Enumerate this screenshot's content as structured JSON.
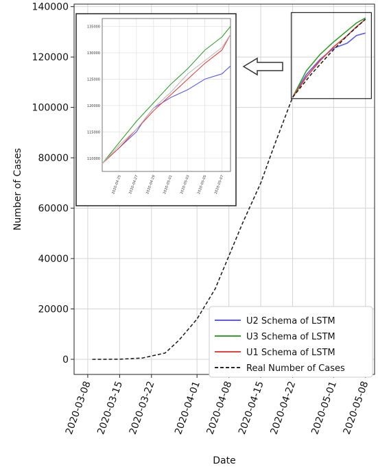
{
  "chart_data": {
    "type": "line",
    "xlabel": "Date",
    "ylabel": "Number of Cases",
    "ylim": [
      -6000,
      141000
    ],
    "xlim": [
      "2020-03-05",
      "2020-05-10"
    ],
    "grid": true,
    "legend_position": "bottom-right",
    "x_ticks": [
      "2020-03-08",
      "2020-03-15",
      "2020-03-22",
      "2020-04-01",
      "2020-04-08",
      "2020-04-15",
      "2020-04-22",
      "2020-05-01",
      "2020-05-08"
    ],
    "y_ticks": [
      0,
      20000,
      40000,
      60000,
      80000,
      100000,
      120000,
      140000
    ],
    "series": [
      {
        "name": "U2 Schema of LSTM",
        "color": "#5b5bf0",
        "style": "solid",
        "x": [
          "2020-04-22",
          "2020-04-25",
          "2020-04-28",
          "2020-05-01",
          "2020-05-04",
          "2020-05-06",
          "2020-05-08"
        ],
        "y": [
          104000,
          113000,
          119000,
          123500,
          125500,
          128500,
          129500
        ]
      },
      {
        "name": "U3 Schema of LSTM",
        "color": "#33a02c",
        "style": "solid",
        "x": [
          "2020-04-22",
          "2020-04-25",
          "2020-04-28",
          "2020-05-01",
          "2020-05-04",
          "2020-05-06",
          "2020-05-08"
        ],
        "y": [
          104000,
          114500,
          121000,
          126000,
          130500,
          133500,
          135500
        ]
      },
      {
        "name": "U1 Schema of LSTM",
        "color": "#e8403a",
        "style": "solid",
        "x": [
          "2020-04-22",
          "2020-04-25",
          "2020-04-28",
          "2020-05-01",
          "2020-05-04",
          "2020-05-06",
          "2020-05-08"
        ],
        "y": [
          104000,
          112000,
          118500,
          124000,
          128500,
          132000,
          135000
        ]
      },
      {
        "name": "Real Number of Cases",
        "color": "#222222",
        "style": "dashed",
        "x": [
          "2020-03-09",
          "2020-03-15",
          "2020-03-20",
          "2020-03-25",
          "2020-03-28",
          "2020-04-01",
          "2020-04-05",
          "2020-04-08",
          "2020-04-11",
          "2020-04-15",
          "2020-04-18",
          "2020-04-22",
          "2020-04-26",
          "2020-04-30",
          "2020-05-04",
          "2020-05-08"
        ],
        "y": [
          0,
          50,
          500,
          2500,
          7500,
          16000,
          28000,
          41000,
          54000,
          70000,
          85000,
          104000,
          113000,
          121000,
          128500,
          135000
        ]
      }
    ],
    "inset": {
      "ylim": [
        107500,
        136500
      ],
      "xlim": [
        "2020-04-23",
        "2020-05-08"
      ],
      "y_ticks": [
        110000,
        115000,
        120000,
        125000,
        130000,
        135000
      ],
      "x_ticks": [
        "2020-04-25",
        "2020-04-27",
        "2020-04-29",
        "2020-05-01",
        "2020-05-03",
        "2020-05-05",
        "2020-05-07"
      ],
      "series": [
        {
          "color": "#5b5bf0",
          "x": [
            "2020-04-23",
            "2020-04-25",
            "2020-04-27",
            "2020-04-28",
            "2020-04-29",
            "2020-05-01",
            "2020-05-03",
            "2020-05-05",
            "2020-05-07",
            "2020-05-08"
          ],
          "y": [
            109000,
            112000,
            115000,
            117500,
            119500,
            121500,
            123000,
            125000,
            126000,
            127500
          ]
        },
        {
          "color": "#33a02c",
          "x": [
            "2020-04-23",
            "2020-04-25",
            "2020-04-27",
            "2020-04-29",
            "2020-05-01",
            "2020-05-03",
            "2020-05-05",
            "2020-05-07",
            "2020-05-08"
          ],
          "y": [
            109000,
            113000,
            117000,
            120500,
            124000,
            127000,
            130500,
            133000,
            135000
          ]
        },
        {
          "color": "#e8403a",
          "x": [
            "2020-04-23",
            "2020-04-25",
            "2020-04-27",
            "2020-04-29",
            "2020-05-01",
            "2020-05-03",
            "2020-05-05",
            "2020-05-07",
            "2020-05-08"
          ],
          "y": [
            109000,
            112000,
            115500,
            119000,
            122000,
            125000,
            128000,
            130500,
            133500
          ]
        },
        {
          "color": "#bbbbbb",
          "x": [
            "2020-04-23",
            "2020-04-25",
            "2020-04-27",
            "2020-04-29",
            "2020-05-01",
            "2020-05-03",
            "2020-05-05",
            "2020-05-07",
            "2020-05-08"
          ],
          "y": [
            109000,
            112500,
            115500,
            119500,
            122500,
            126000,
            128500,
            131000,
            133500
          ]
        }
      ]
    }
  }
}
